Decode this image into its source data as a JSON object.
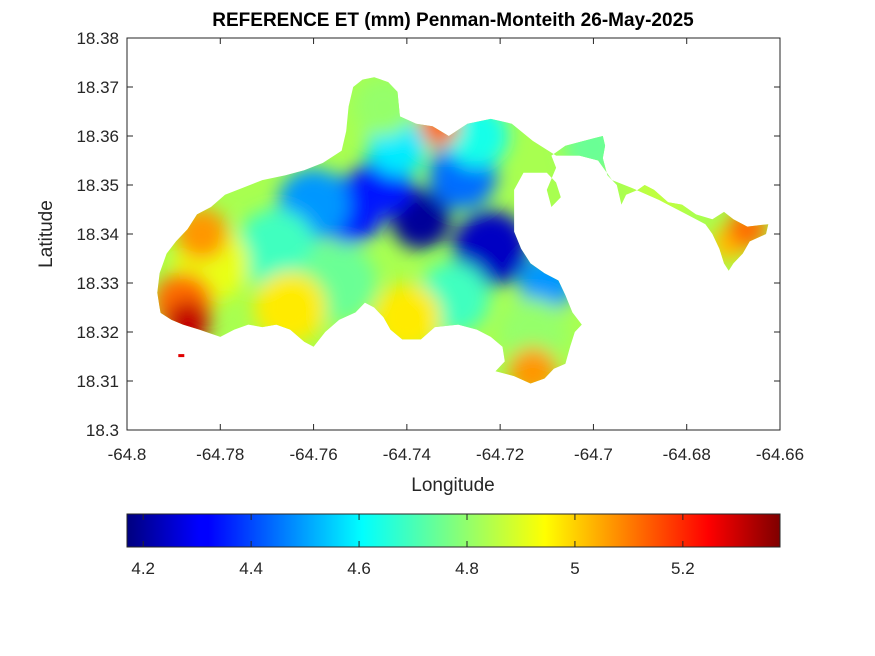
{
  "chart_data": {
    "type": "heatmap",
    "title": "REFERENCE ET (mm) Penman-Monteith 26-May-2025",
    "xlabel": "Longitude",
    "ylabel": "Latitude",
    "xlim": [
      -64.8,
      -64.66
    ],
    "ylim": [
      18.3,
      18.38
    ],
    "xticks": [
      -64.8,
      -64.78,
      -64.76,
      -64.74,
      -64.72,
      -64.7,
      -64.68,
      -64.66
    ],
    "yticks": [
      18.3,
      18.31,
      18.32,
      18.33,
      18.34,
      18.35,
      18.36,
      18.37,
      18.38
    ],
    "colormap": "jet",
    "clim": [
      4.17,
      5.38
    ],
    "colorbar_ticks": [
      4.2,
      4.4,
      4.6,
      4.8,
      5,
      5.2
    ],
    "colorbar_location": "southoutside",
    "grid": false,
    "field": {
      "description": "Spatial reference ET field over land; low values in the central-east basin, high values along the southwest coast",
      "regions": [
        {
          "lon": -64.737,
          "lat": 18.343,
          "value": 4.2
        },
        {
          "lon": -64.722,
          "lat": 18.337,
          "value": 4.25
        },
        {
          "lon": -64.752,
          "lat": 18.345,
          "value": 4.35
        },
        {
          "lon": -64.745,
          "lat": 18.35,
          "value": 4.35
        },
        {
          "lon": -64.728,
          "lat": 18.352,
          "value": 4.45
        },
        {
          "lon": -64.76,
          "lat": 18.346,
          "value": 4.5
        },
        {
          "lon": -64.71,
          "lat": 18.33,
          "value": 4.5
        },
        {
          "lon": -64.742,
          "lat": 18.358,
          "value": 4.6
        },
        {
          "lon": -64.725,
          "lat": 18.36,
          "value": 4.65
        },
        {
          "lon": -64.768,
          "lat": 18.337,
          "value": 4.7
        },
        {
          "lon": -64.755,
          "lat": 18.33,
          "value": 4.75
        },
        {
          "lon": -64.73,
          "lat": 18.327,
          "value": 4.7
        },
        {
          "lon": -64.713,
          "lat": 18.32,
          "value": 4.8
        },
        {
          "lon": -64.745,
          "lat": 18.366,
          "value": 4.8
        },
        {
          "lon": -64.782,
          "lat": 18.334,
          "value": 4.9
        },
        {
          "lon": -64.74,
          "lat": 18.323,
          "value": 4.95
        },
        {
          "lon": -64.765,
          "lat": 18.325,
          "value": 4.95
        },
        {
          "lon": -64.788,
          "lat": 18.326,
          "value": 5.1
        },
        {
          "lon": -64.784,
          "lat": 18.34,
          "value": 5.05
        },
        {
          "lon": -64.733,
          "lat": 18.362,
          "value": 5.1
        },
        {
          "lon": -64.713,
          "lat": 18.312,
          "value": 5.05
        },
        {
          "lon": -64.787,
          "lat": 18.322,
          "value": 5.3
        },
        {
          "lon": -64.671,
          "lat": 18.338,
          "value": 5.0
        },
        {
          "lon": -64.667,
          "lat": 18.341,
          "value": 5.1
        },
        {
          "lon": -64.7,
          "lat": 18.358,
          "value": 4.75
        },
        {
          "lon": -64.685,
          "lat": 18.349,
          "value": 4.85
        }
      ]
    }
  }
}
